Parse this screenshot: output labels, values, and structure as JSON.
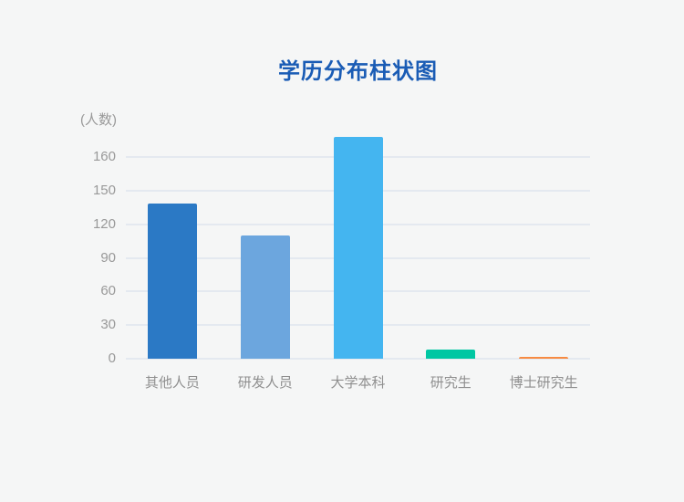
{
  "page": {
    "background_color": "#f5f6f6"
  },
  "chart_data": {
    "type": "bar",
    "title": "学历分布柱状图",
    "title_color": "#1a5cb5",
    "ylabel": "(人数)",
    "xlabel": "",
    "categories": [
      "其他人员",
      "研发人员",
      "大学本科",
      "研究生",
      "博士研究生"
    ],
    "values": [
      139,
      110,
      166,
      8,
      2
    ],
    "yticks": [
      0,
      30,
      60,
      90,
      120,
      150,
      160
    ],
    "bar_colors": [
      "#2b79c5",
      "#6ca6de",
      "#44b5f0",
      "#00c7a3",
      "#f78b42"
    ],
    "grid": true,
    "legend_position": "none",
    "axis_text_color": "#999999",
    "gridline_color": "#e4e9f0"
  }
}
